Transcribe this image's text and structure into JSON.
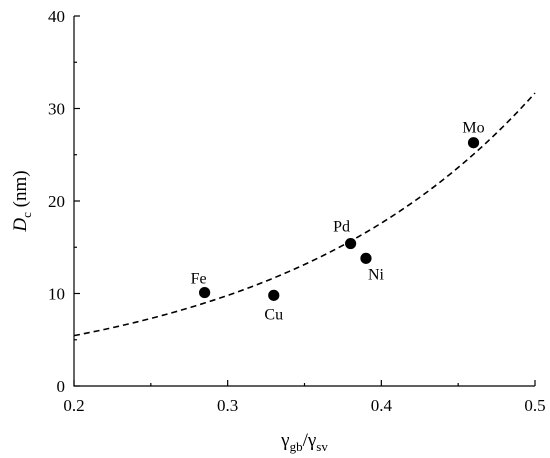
{
  "chart_data": {
    "type": "scatter",
    "title": "",
    "xlabel": {
      "base": "γ",
      "sub1": "gb",
      "sep": "/",
      "base2": "γ",
      "sub2": "sv"
    },
    "ylabel": {
      "italic": "D",
      "sub": "c",
      "unit": " (nm)"
    },
    "xlim": [
      0.2,
      0.5
    ],
    "ylim": [
      0,
      40
    ],
    "xticks": [
      "0.2",
      "0.3",
      "0.4",
      "0.5"
    ],
    "yticks": [
      "0",
      "10",
      "20",
      "30",
      "40"
    ],
    "grid": false,
    "points": [
      {
        "label": "Fe",
        "x": 0.285,
        "y": 10.1
      },
      {
        "label": "Cu",
        "x": 0.33,
        "y": 9.8
      },
      {
        "label": "Pd",
        "x": 0.38,
        "y": 15.4
      },
      {
        "label": "Ni",
        "x": 0.39,
        "y": 13.8
      },
      {
        "label": "Mo",
        "x": 0.46,
        "y": 26.3
      }
    ],
    "fit_curve": {
      "style": "dashed",
      "x": [
        0.2,
        0.25,
        0.3,
        0.35,
        0.4,
        0.45,
        0.5
      ],
      "y": [
        5.3,
        7.2,
        9.9,
        13.5,
        18.4,
        24.1,
        29.8
      ]
    }
  }
}
